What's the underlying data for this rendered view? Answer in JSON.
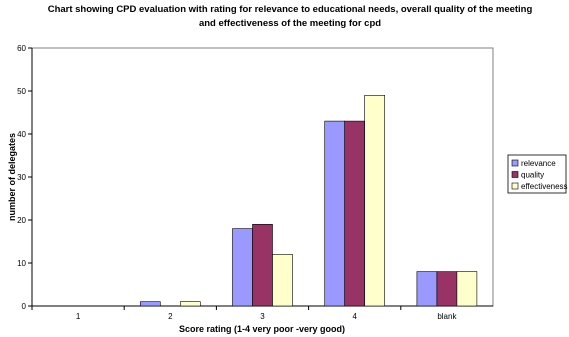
{
  "chart_data": {
    "type": "bar",
    "title": "Chart showing CPD evaluation with rating for relevance to educational needs, overall quality of the meeting and effectiveness of the meeting for cpd",
    "xlabel": "Score rating (1-4 very poor -very good)",
    "ylabel": "number of delegates",
    "categories": [
      "1",
      "2",
      "3",
      "4",
      "blank"
    ],
    "ylim": [
      0,
      60
    ],
    "yticks": [
      0,
      10,
      20,
      30,
      40,
      50,
      60
    ],
    "grid": false,
    "legend": "right",
    "series": [
      {
        "name": "relevance",
        "color": "#9999ff",
        "values": [
          0,
          1,
          18,
          43,
          8
        ]
      },
      {
        "name": "quality",
        "color": "#993366",
        "values": [
          0,
          0,
          19,
          43,
          8
        ]
      },
      {
        "name": "effectiveness",
        "color": "#ffffcc",
        "values": [
          0,
          1,
          12,
          49,
          8
        ]
      }
    ]
  }
}
